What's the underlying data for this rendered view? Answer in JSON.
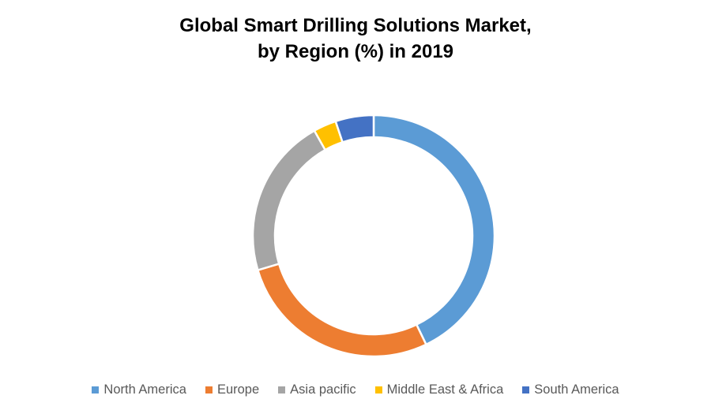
{
  "chart_data": {
    "type": "pie",
    "subtype": "donut",
    "title": "Global Smart Drilling Solutions Market, by Region (%) in 2019",
    "title_lines": [
      "Global Smart Drilling Solutions Market,",
      "by Region (%) in 2019"
    ],
    "categories": [
      "North America",
      "Europe",
      "Asia pacific",
      "Middle East & Africa",
      "South America"
    ],
    "values": [
      42,
      27,
      21,
      3,
      5
    ],
    "colors": [
      "#5B9BD5",
      "#ED7D31",
      "#A5A5A5",
      "#FFC000",
      "#4472C4"
    ],
    "legend_position": "bottom"
  }
}
